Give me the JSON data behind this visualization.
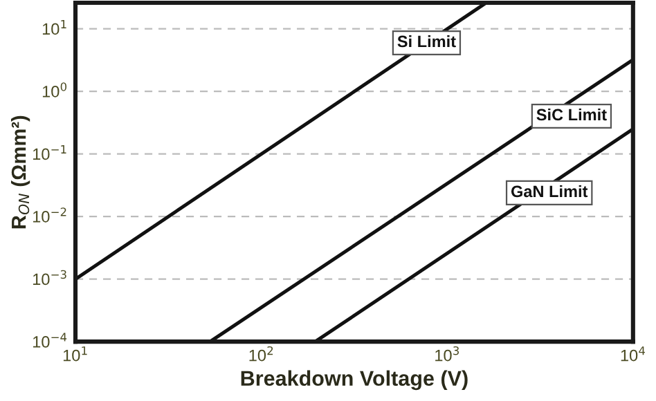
{
  "chart_data": {
    "type": "line",
    "xlabel": "Breakdown Voltage (V)",
    "ylabel": "R$_{ON}$ (Ωmm²)",
    "log": "xy",
    "grid": "y",
    "line_style": "solid",
    "marker": "none",
    "xlim": [
      10,
      10000
    ],
    "ylim": [
      0.0001,
      26
    ],
    "xticks": [
      {
        "value": 10,
        "label": "10$^{1}$"
      },
      {
        "value": 100,
        "label": "10$^{2}$"
      },
      {
        "value": 1000,
        "label": "10$^{3}$"
      },
      {
        "value": 10000,
        "label": "10$^{4}$"
      }
    ],
    "yticks": [
      {
        "value": 0.0001,
        "label": "10$^{−4}$"
      },
      {
        "value": 0.001,
        "label": "10$^{−3}$"
      },
      {
        "value": 0.01,
        "label": "10$^{−2}$"
      },
      {
        "value": 0.1,
        "label": "10$^{−1}$"
      },
      {
        "value": 1,
        "label": "10$^{0}$"
      },
      {
        "value": 10,
        "label": "10$^{1}$"
      }
    ],
    "series": [
      {
        "name": "Si Limit",
        "color": "#111111",
        "x": [
          10,
          1620
        ],
        "values": [
          0.001,
          26
        ]
      },
      {
        "name": "SiC Limit",
        "color": "#111111",
        "x": [
          53,
          10000
        ],
        "values": [
          0.0001,
          3.2
        ]
      },
      {
        "name": "GaN Limit",
        "color": "#111111",
        "x": [
          195,
          10000
        ],
        "values": [
          0.0001,
          0.25
        ]
      }
    ]
  }
}
